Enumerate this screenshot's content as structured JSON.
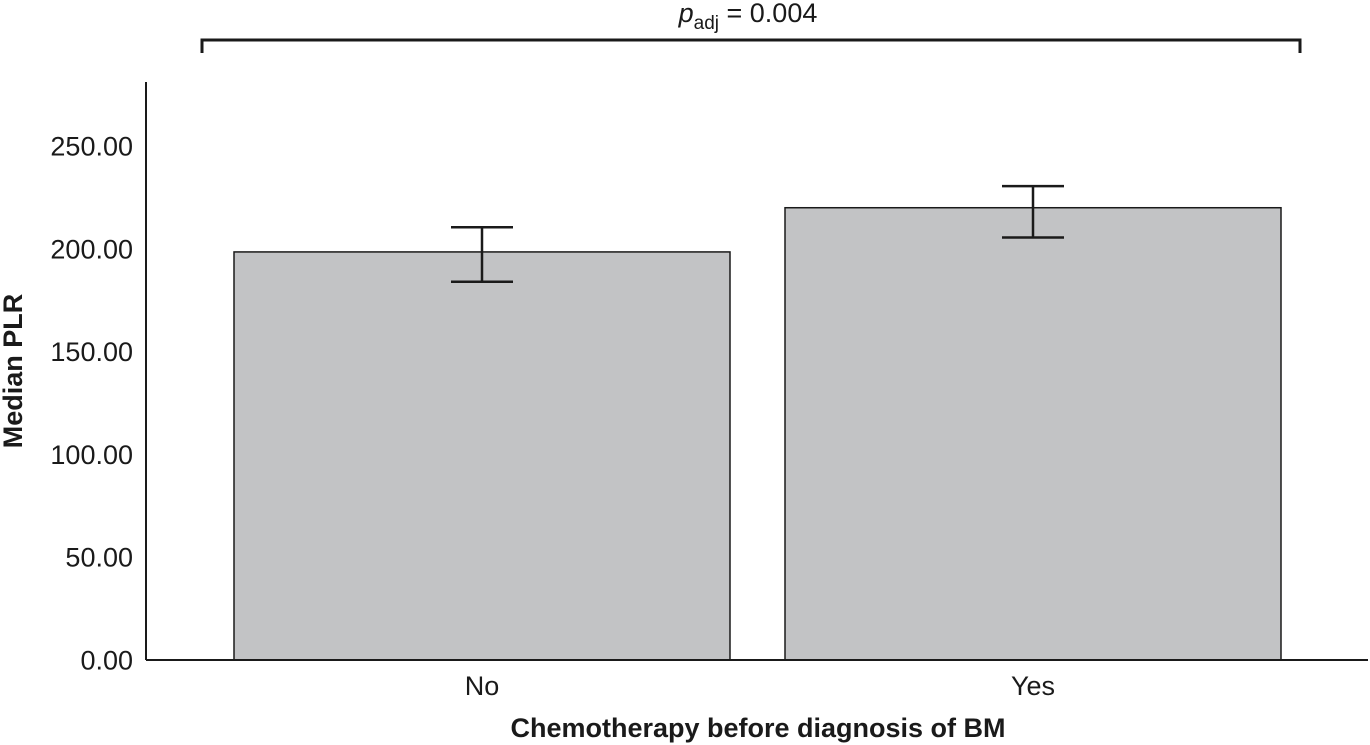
{
  "chart_data": {
    "type": "bar",
    "categories": [
      "No",
      "Yes"
    ],
    "values": [
      198.5,
      220.0
    ],
    "error_bars": [
      {
        "low": 184.0,
        "high": 210.5
      },
      {
        "low": 205.5,
        "high": 230.5
      }
    ],
    "xlabel": "Chemotherapy before diagnosis of BM",
    "ylabel": "Median PLR",
    "ylim": [
      0,
      275
    ],
    "yticks": [
      "0.00",
      "50.00",
      "100.00",
      "150.00",
      "200.00",
      "250.00"
    ],
    "grid": false,
    "annotation": {
      "symbol": "p",
      "subscript": "adj",
      "value_text": " = 0.004"
    },
    "colors": {
      "bar_fill": "#c2c3c5",
      "bar_stroke": "#1a1a1a",
      "axis": "#1a1a1a"
    }
  }
}
